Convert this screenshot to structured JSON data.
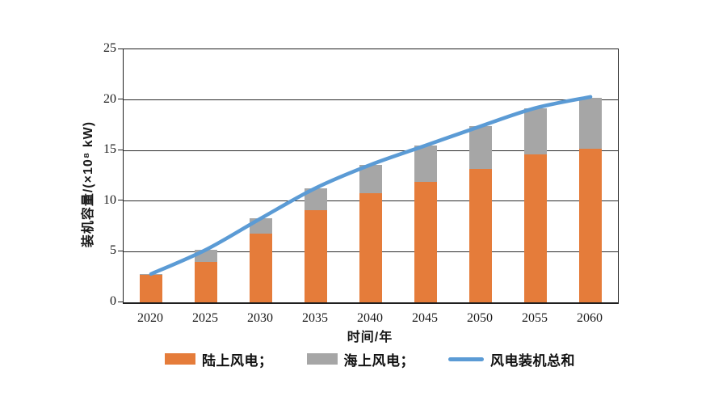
{
  "chart_data": {
    "type": "bar",
    "subtype": "stacked-bars-with-total-line",
    "title": "",
    "categories": [
      "2020",
      "2025",
      "2030",
      "2035",
      "2040",
      "2045",
      "2050",
      "2055",
      "2060"
    ],
    "series": [
      {
        "name": "陆上风电",
        "render": "bar",
        "color": "#E57C3A",
        "values": [
          2.7,
          4.0,
          6.8,
          9.1,
          10.8,
          11.9,
          13.2,
          14.6,
          15.2
        ]
      },
      {
        "name": "海上风电",
        "render": "bar",
        "color": "#A6A6A6",
        "values": [
          0.1,
          1.2,
          1.5,
          2.2,
          2.8,
          3.6,
          4.2,
          4.6,
          5.0
        ]
      },
      {
        "name": "风电装机总和",
        "render": "line",
        "color": "#5B9BD5",
        "values": [
          2.8,
          5.2,
          8.3,
          11.3,
          13.6,
          15.5,
          17.4,
          19.2,
          20.3
        ]
      }
    ],
    "xlabel": "时间/年",
    "ylabel": "装机容量/(×10⁸ kW)",
    "ylim": [
      0,
      25
    ],
    "yticks": [
      0,
      5,
      10,
      15,
      20,
      25
    ],
    "grid": true,
    "legend_position": "bottom",
    "legend_labels": [
      "陆上风电；",
      "海上风电；",
      "风电装机总和"
    ]
  },
  "layout_colors": {
    "axis": "#1f1f1f",
    "background": "#ffffff",
    "text": "#1a1a1a"
  }
}
